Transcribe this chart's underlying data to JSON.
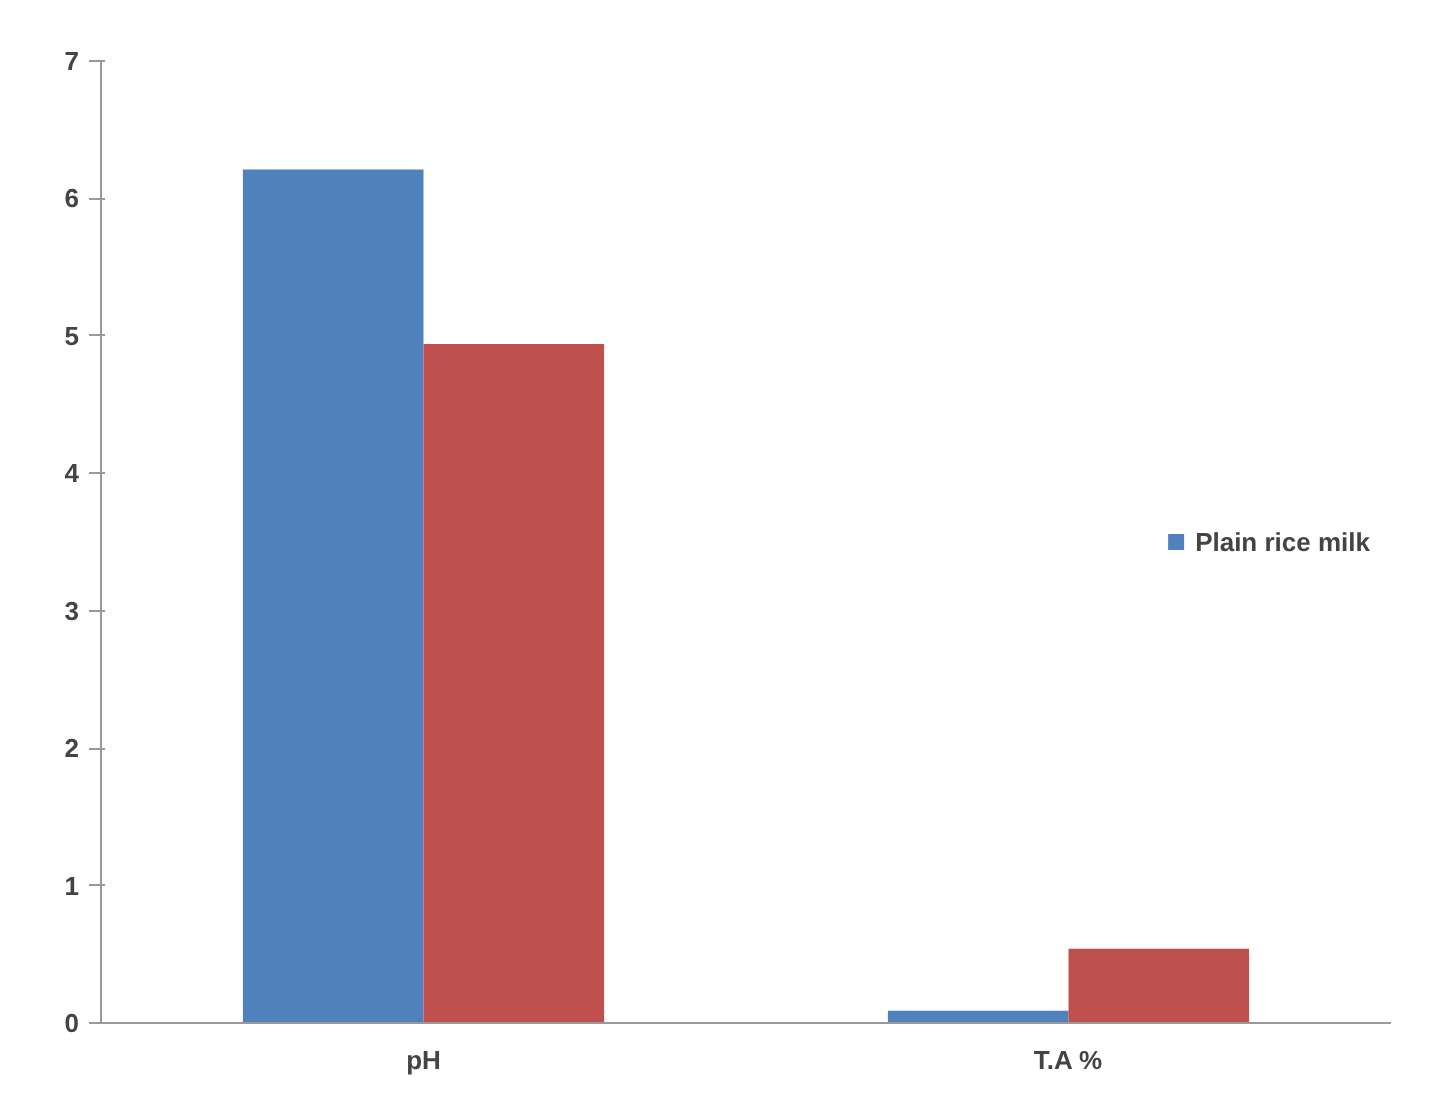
{
  "chart_data": {
    "type": "bar",
    "categories": [
      "pH",
      "T.A %"
    ],
    "series": [
      {
        "name": "Plain rice milk",
        "color": "#4f81bd",
        "values": [
          6.21,
          0.09
        ]
      },
      {
        "color": "#c0504d",
        "values": [
          4.94,
          0.54
        ]
      }
    ],
    "ylim": [
      0,
      7
    ],
    "yticks": [
      0,
      1,
      2,
      3,
      4,
      5,
      6,
      7
    ],
    "grid": false,
    "legend": "right"
  }
}
